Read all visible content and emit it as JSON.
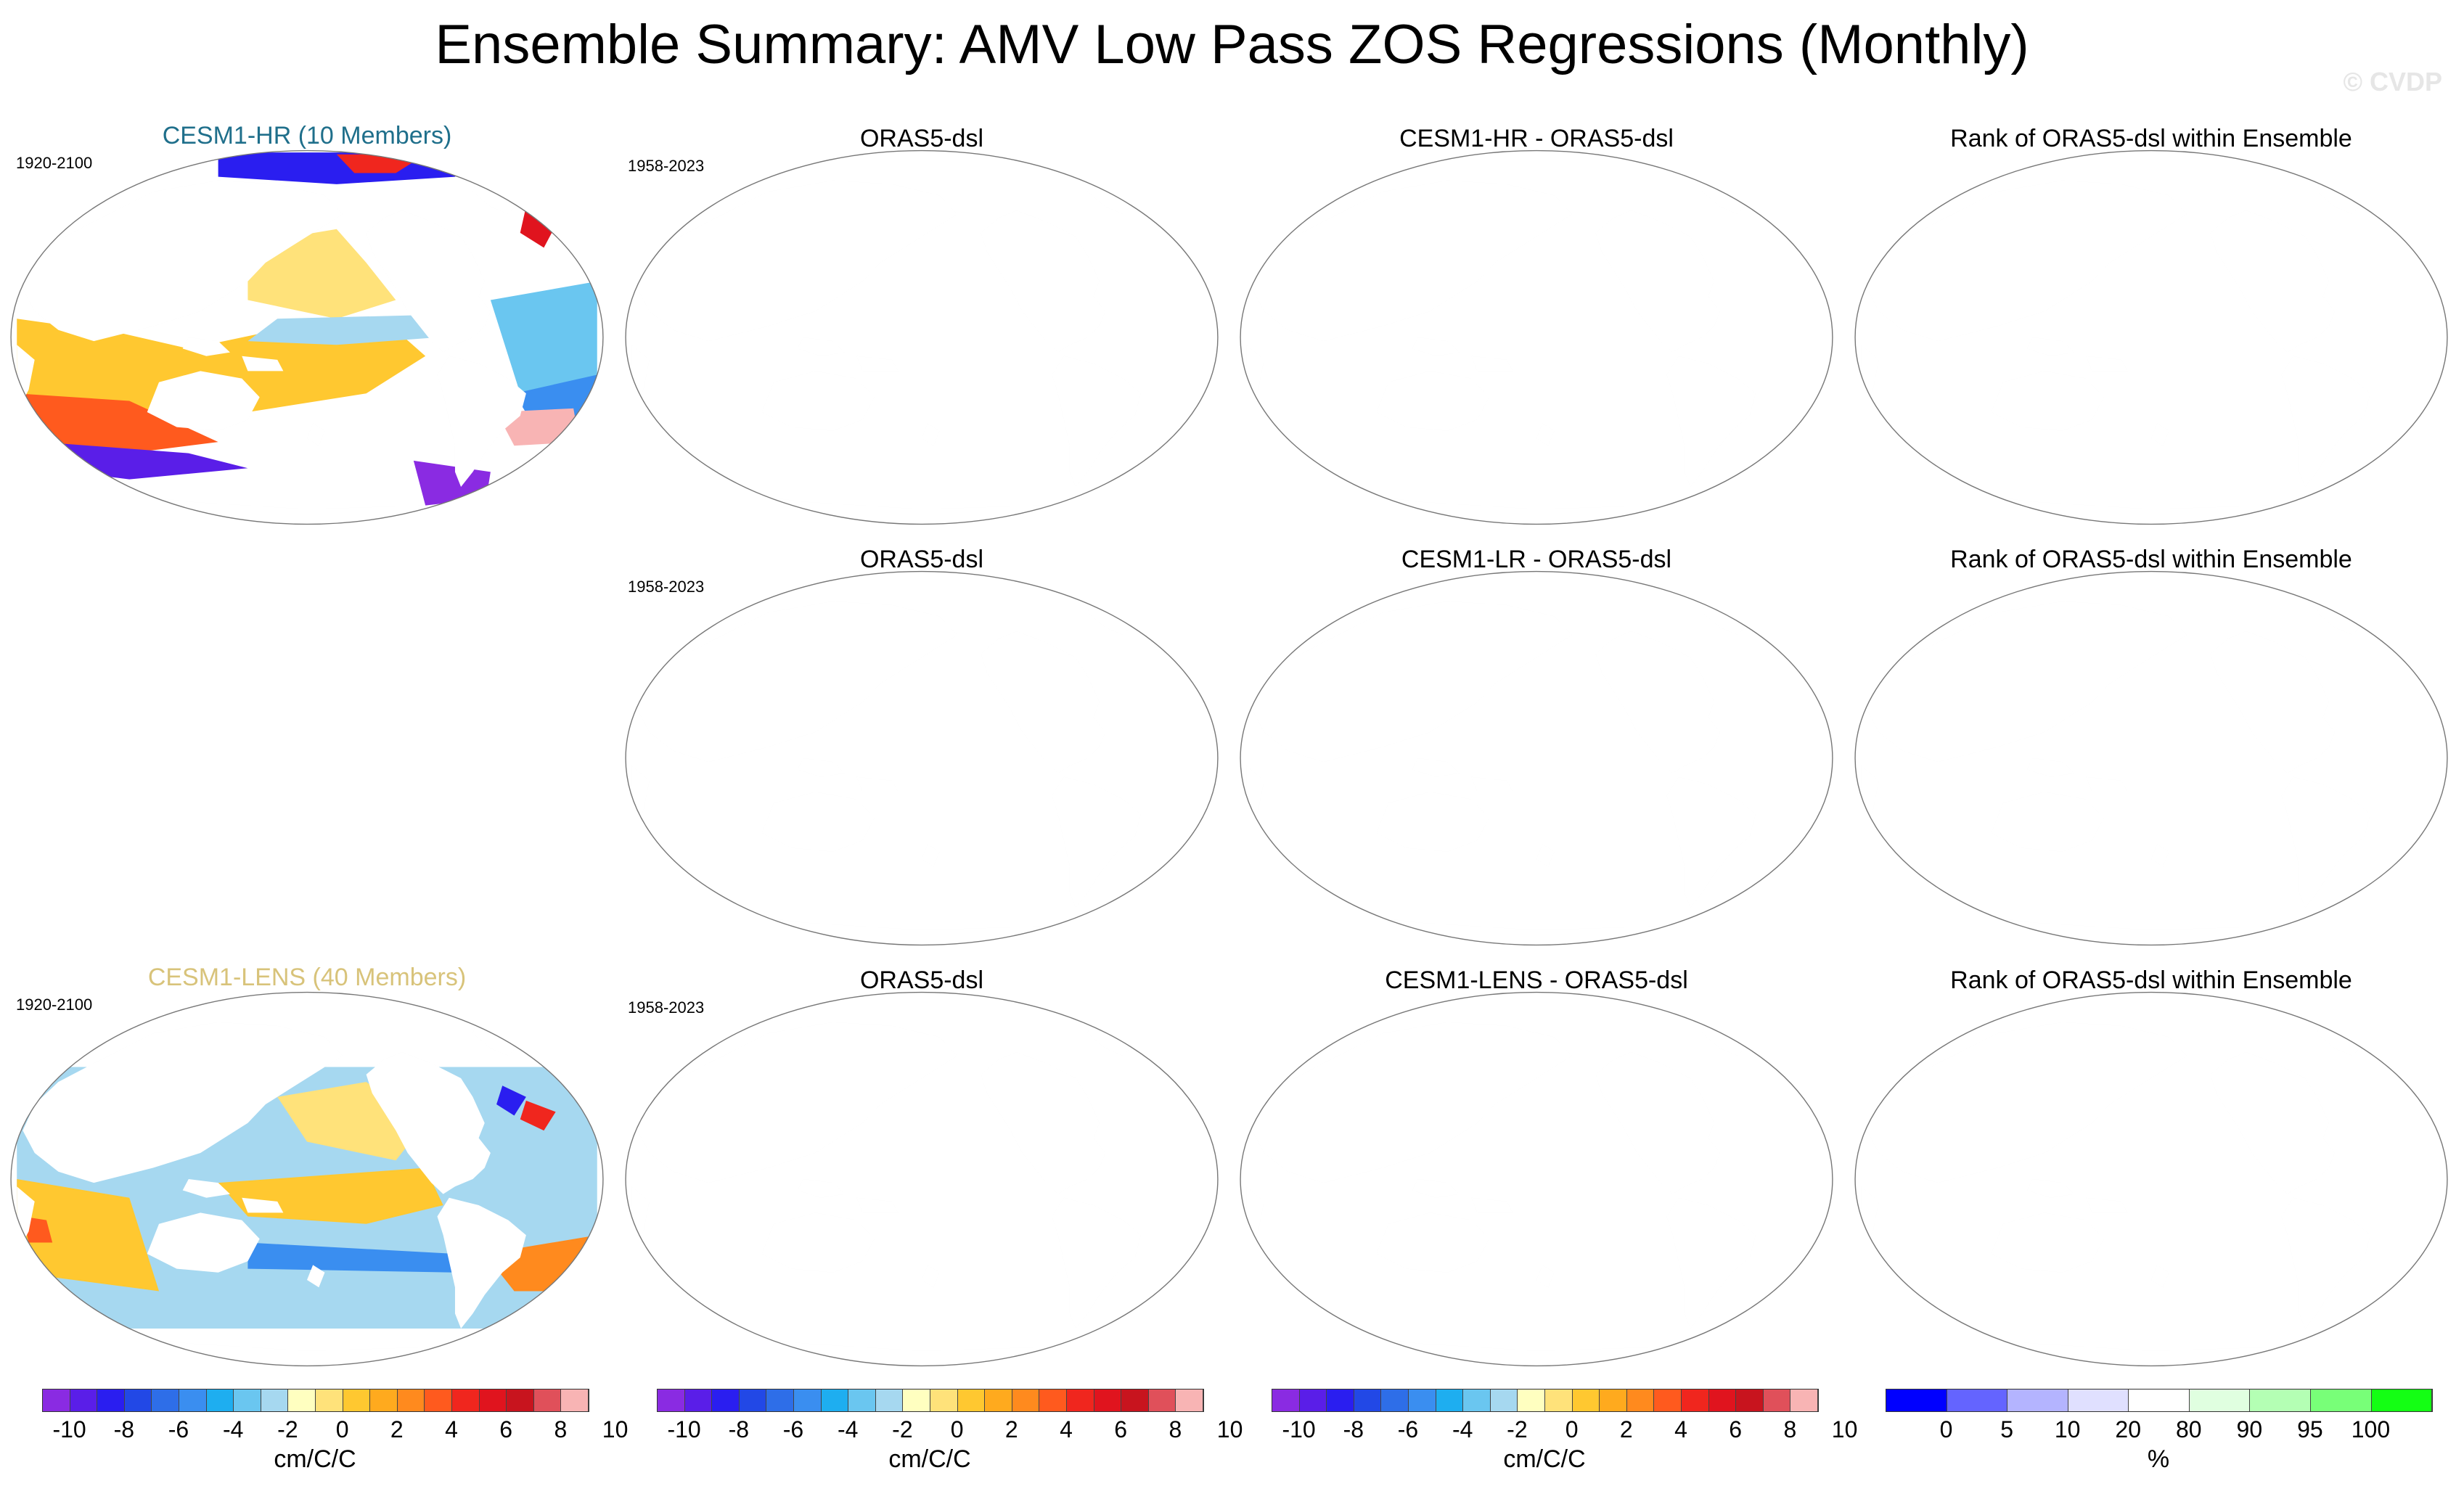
{
  "title": "Ensemble Summary: AMV Low Pass ZOS Regressions (Monthly)",
  "watermark": "© CVDP",
  "colors": {
    "hr_title": "#1f6f8b",
    "lens_title": "#d8c37a"
  },
  "rows": [
    {
      "ensemble": {
        "title": "CESM1-HR (10 Members)",
        "period": "1920-2100",
        "style": "hr"
      },
      "obs": {
        "title": "ORAS5-dsl",
        "period": "1958-2023"
      },
      "diff": {
        "title": "CESM1-HR - ORAS5-dsl"
      },
      "rank": {
        "title": "Rank of ORAS5-dsl within Ensemble"
      }
    },
    {
      "ensemble": null,
      "obs": {
        "title": "ORAS5-dsl",
        "period": "1958-2023"
      },
      "diff": {
        "title": "CESM1-LR - ORAS5-dsl"
      },
      "rank": {
        "title": "Rank of ORAS5-dsl within Ensemble"
      }
    },
    {
      "ensemble": {
        "title": "CESM1-LENS (40 Members)",
        "period": "1920-2100",
        "style": "lens"
      },
      "obs": {
        "title": "ORAS5-dsl",
        "period": "1958-2023"
      },
      "diff": {
        "title": "CESM1-LENS - ORAS5-dsl"
      },
      "rank": {
        "title": "Rank of ORAS5-dsl within Ensemble"
      }
    }
  ],
  "colorbars": [
    {
      "label": "cm/C/C",
      "ticks": [
        "-10",
        "-8",
        "-6",
        "-4",
        "-2",
        "0",
        "2",
        "4",
        "6",
        "8",
        "10"
      ],
      "colors": [
        "#8a2be2",
        "#5a1ee8",
        "#2a1ef0",
        "#2248e6",
        "#2e6ee8",
        "#3a8ef0",
        "#1eaef0",
        "#6ac6f0",
        "#a6d8f0",
        "#ffffc0",
        "#ffe27a",
        "#ffc830",
        "#ffaa1e",
        "#ff8a1e",
        "#ff5a1e",
        "#f0261e",
        "#e0141e",
        "#c8141e",
        "#e0505a",
        "#f8b4b4"
      ]
    },
    {
      "label": "cm/C/C",
      "ticks": [
        "-10",
        "-8",
        "-6",
        "-4",
        "-2",
        "0",
        "2",
        "4",
        "6",
        "8",
        "10"
      ],
      "colors": [
        "#8a2be2",
        "#5a1ee8",
        "#2a1ef0",
        "#2248e6",
        "#2e6ee8",
        "#3a8ef0",
        "#1eaef0",
        "#6ac6f0",
        "#a6d8f0",
        "#ffffc0",
        "#ffe27a",
        "#ffc830",
        "#ffaa1e",
        "#ff8a1e",
        "#ff5a1e",
        "#f0261e",
        "#e0141e",
        "#c8141e",
        "#e0505a",
        "#f8b4b4"
      ]
    },
    {
      "label": "cm/C/C",
      "ticks": [
        "-10",
        "-8",
        "-6",
        "-4",
        "-2",
        "0",
        "2",
        "4",
        "6",
        "8",
        "10"
      ],
      "colors": [
        "#8a2be2",
        "#5a1ee8",
        "#2a1ef0",
        "#2248e6",
        "#2e6ee8",
        "#3a8ef0",
        "#1eaef0",
        "#6ac6f0",
        "#a6d8f0",
        "#ffffc0",
        "#ffe27a",
        "#ffc830",
        "#ffaa1e",
        "#ff8a1e",
        "#ff5a1e",
        "#f0261e",
        "#e0141e",
        "#c8141e",
        "#e0505a",
        "#f8b4b4"
      ]
    },
    {
      "label": "%",
      "ticks": [
        "0",
        "5",
        "10",
        "20",
        "80",
        "90",
        "95",
        "100"
      ],
      "colors": [
        "#0000ff",
        "#6464ff",
        "#b4b4ff",
        "#e0e0ff",
        "#ffffff",
        "#e0ffe0",
        "#b4ffb4",
        "#78ff78",
        "#14ff14"
      ]
    }
  ]
}
